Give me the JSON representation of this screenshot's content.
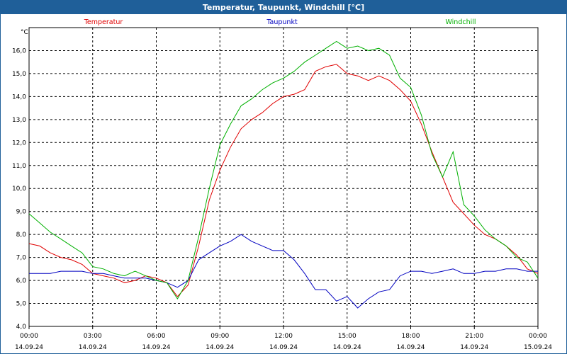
{
  "window": {
    "title": "Temperatur, Taupunkt, Windchill [°C]"
  },
  "chart_data": {
    "type": "line",
    "title": "Temperatur, Taupunkt, Windchill [°C]",
    "ylabel": "°C",
    "ylim": [
      4.0,
      17.0
    ],
    "yticks": [
      "4,0",
      "5,0",
      "6,0",
      "7,0",
      "8,0",
      "9,0",
      "10,0",
      "11,0",
      "12,0",
      "13,0",
      "14,0",
      "15,0",
      "16,0"
    ],
    "xlim": [
      "14.09.24 00:00",
      "15.09.24 00:00"
    ],
    "xticks": [
      {
        "time": "00:00",
        "date": "14.09.24"
      },
      {
        "time": "03:00",
        "date": "14.09.24"
      },
      {
        "time": "06:00",
        "date": "14.09.24"
      },
      {
        "time": "09:00",
        "date": "14.09.24"
      },
      {
        "time": "12:00",
        "date": "14.09.24"
      },
      {
        "time": "15:00",
        "date": "14.09.24"
      },
      {
        "time": "18:00",
        "date": "14.09.24"
      },
      {
        "time": "21:00",
        "date": "14.09.24"
      },
      {
        "time": "00:00",
        "date": "15.09.24"
      }
    ],
    "grid": true,
    "legend_position": "top",
    "x_hours": [
      0.0,
      0.5,
      1.0,
      1.5,
      2.0,
      2.5,
      3.0,
      3.5,
      4.0,
      4.5,
      5.0,
      5.5,
      6.0,
      6.5,
      7.0,
      7.5,
      8.0,
      8.5,
      9.0,
      9.5,
      10.0,
      10.5,
      11.0,
      11.5,
      12.0,
      12.5,
      13.0,
      13.5,
      14.0,
      14.5,
      15.0,
      15.5,
      16.0,
      16.5,
      17.0,
      17.5,
      18.0,
      18.5,
      19.0,
      19.5,
      20.0,
      20.5,
      21.0,
      21.5,
      22.0,
      22.5,
      23.0,
      23.5,
      24.0
    ],
    "series": [
      {
        "name": "Temperatur",
        "color": "#e00000",
        "values": [
          7.6,
          7.5,
          7.2,
          7.0,
          6.9,
          6.7,
          6.3,
          6.2,
          6.1,
          5.9,
          6.0,
          6.2,
          6.1,
          5.9,
          5.3,
          5.8,
          7.5,
          9.5,
          10.8,
          11.8,
          12.6,
          13.0,
          13.3,
          13.7,
          14.0,
          14.1,
          14.3,
          15.1,
          15.3,
          15.4,
          15.0,
          14.9,
          14.7,
          14.9,
          14.7,
          14.3,
          13.8,
          12.8,
          11.6,
          10.5,
          9.4,
          8.9,
          8.4,
          8.0,
          7.8,
          7.5,
          7.1,
          6.5,
          6.3
        ]
      },
      {
        "name": "Taupunkt",
        "color": "#0000c0",
        "values": [
          6.3,
          6.3,
          6.3,
          6.4,
          6.4,
          6.4,
          6.3,
          6.3,
          6.2,
          6.1,
          6.1,
          6.1,
          6.0,
          5.9,
          5.7,
          6.0,
          6.9,
          7.2,
          7.5,
          7.7,
          8.0,
          7.7,
          7.5,
          7.3,
          7.3,
          6.9,
          6.3,
          5.6,
          5.6,
          5.1,
          5.3,
          4.8,
          5.2,
          5.5,
          5.6,
          6.2,
          6.4,
          6.4,
          6.3,
          6.4,
          6.5,
          6.3,
          6.3,
          6.4,
          6.4,
          6.5,
          6.5,
          6.4,
          6.4
        ]
      },
      {
        "name": "Windchill",
        "color": "#00b000",
        "values": [
          8.9,
          8.5,
          8.1,
          7.8,
          7.5,
          7.2,
          6.6,
          6.5,
          6.3,
          6.2,
          6.4,
          6.2,
          6.0,
          5.9,
          5.2,
          6.0,
          7.9,
          10.0,
          11.9,
          12.8,
          13.6,
          13.9,
          14.3,
          14.6,
          14.8,
          15.1,
          15.5,
          15.8,
          16.1,
          16.4,
          16.1,
          16.2,
          16.0,
          16.1,
          15.8,
          14.8,
          14.4,
          13.2,
          11.5,
          10.5,
          11.6,
          9.3,
          8.8,
          8.2,
          7.8,
          7.5,
          7.0,
          6.8,
          6.1
        ]
      }
    ]
  }
}
